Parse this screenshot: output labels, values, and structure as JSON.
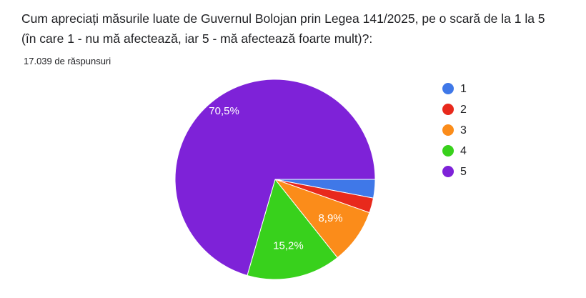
{
  "chart_data": {
    "type": "pie",
    "title": "Cum apreciați măsurile luate de Guvernul Bolojan prin Legea 141/2025, pe o scară de la 1 la 5  (în care 1 - nu mă afectează, iar 5 - mă afectează foarte mult)?:",
    "subtitle": "17.039 de răspunsuri",
    "categories": [
      "1",
      "2",
      "3",
      "4",
      "5"
    ],
    "values": [
      3.0,
      2.4,
      8.9,
      15.2,
      70.5
    ],
    "value_labels": [
      null,
      null,
      "8,9%",
      "15,2%",
      "70,5%"
    ],
    "colors": [
      "#3f78e8",
      "#e8291c",
      "#fb8c1a",
      "#38d11c",
      "#7e22d8"
    ],
    "legend": "right"
  }
}
